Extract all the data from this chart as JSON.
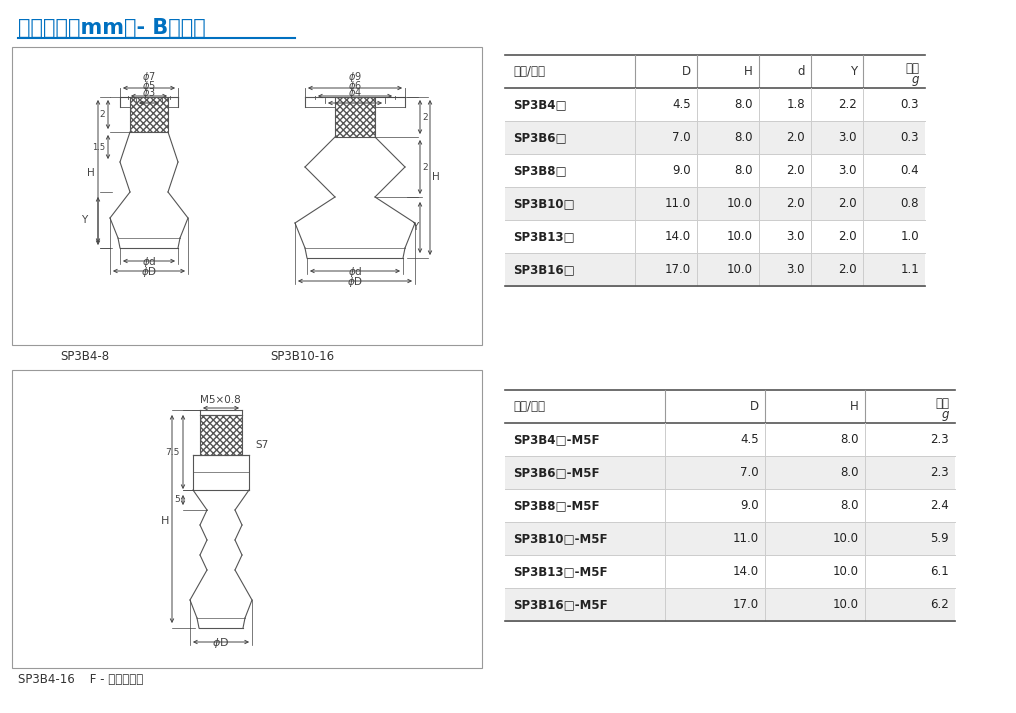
{
  "title": "尺寸规格（mm）- B型吸盘",
  "title_color": "#0070C0",
  "bg_color": "#ffffff",
  "table1": {
    "headers": [
      "型号/尺寸",
      "D",
      "H",
      "d",
      "Y",
      "单重\ng"
    ],
    "rows": [
      [
        "SP3B4□",
        "4.5",
        "8.0",
        "1.8",
        "2.2",
        "0.3"
      ],
      [
        "SP3B6□",
        "7.0",
        "8.0",
        "2.0",
        "3.0",
        "0.3"
      ],
      [
        "SP3B8□",
        "9.0",
        "8.0",
        "2.0",
        "3.0",
        "0.4"
      ],
      [
        "SP3B10□",
        "11.0",
        "10.0",
        "2.0",
        "2.0",
        "0.8"
      ],
      [
        "SP3B13□",
        "14.0",
        "10.0",
        "3.0",
        "2.0",
        "1.0"
      ],
      [
        "SP3B16□",
        "17.0",
        "10.0",
        "3.0",
        "2.0",
        "1.1"
      ]
    ]
  },
  "table2": {
    "headers": [
      "型号/尺寸",
      "D",
      "H",
      "单重\ng"
    ],
    "rows": [
      [
        "SP3B4□-M5F",
        "4.5",
        "8.0",
        "2.3"
      ],
      [
        "SP3B6□-M5F",
        "7.0",
        "8.0",
        "2.3"
      ],
      [
        "SP3B8□-M5F",
        "9.0",
        "8.0",
        "2.4"
      ],
      [
        "SP3B10□-M5F",
        "11.0",
        "10.0",
        "5.9"
      ],
      [
        "SP3B13□-M5F",
        "14.0",
        "10.0",
        "6.1"
      ],
      [
        "SP3B16□-M5F",
        "17.0",
        "10.0",
        "6.2"
      ]
    ]
  },
  "label1": "SP3B4-8",
  "label2": "SP3B10-16",
  "label3": "SP3B4-16    F - 内螺纹连接",
  "row_colors": [
    "#ffffff",
    "#eeeeee"
  ],
  "header_line_color": "#333333",
  "border_color": "#aaaaaa",
  "text_color": "#222222",
  "header_text_color": "#333333"
}
